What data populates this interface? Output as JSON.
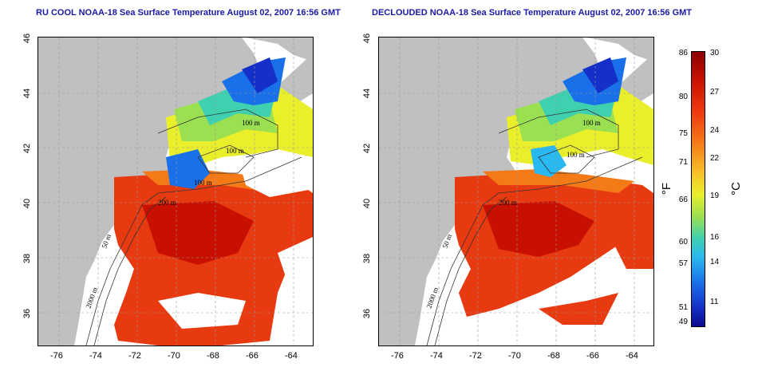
{
  "left_panel": {
    "title": "RU COOL NOAA-18 Sea Surface Temperature August 02, 2007 16:56 GMT",
    "contour_labels": [
      "100 m",
      "100 m",
      "100 m",
      "200 m",
      "50 m",
      "2000 m"
    ]
  },
  "right_panel": {
    "title": "DECLOUDED NOAA-18 Sea Surface Temperature August 02, 2007 16:56 GMT",
    "contour_labels": [
      "100 m",
      "100 m",
      "200 m",
      "50 m",
      "2000 m"
    ]
  },
  "axes": {
    "lat_ticks": [
      "46",
      "44",
      "42",
      "40",
      "38",
      "36"
    ],
    "lon_ticks": [
      "-76",
      "-74",
      "-72",
      "-70",
      "-68",
      "-66",
      "-64"
    ]
  },
  "colorbar": {
    "fahrenheit_label": "°F",
    "celsius_label": "°C",
    "fahrenheit_ticks": [
      "86",
      "80",
      "75",
      "71",
      "66",
      "60",
      "57",
      "51",
      "49"
    ],
    "celsius_ticks": [
      "30",
      "27",
      "24",
      "22",
      "19",
      "16",
      "14",
      "11"
    ]
  },
  "colors": {
    "land": "#c0c0c0",
    "cloud_mask": "#ffffff",
    "title_color": "#1a1aa6"
  }
}
